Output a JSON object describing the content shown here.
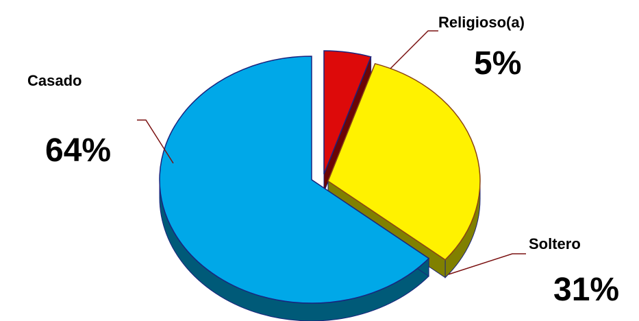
{
  "chart_data": {
    "type": "pie",
    "style": "3d-exploded",
    "title": "",
    "slices": [
      {
        "label": "Religioso(a)",
        "value": 5,
        "display": "5%",
        "color": "#dd0a0a",
        "side_color": "#6b0505"
      },
      {
        "label": "Soltero",
        "value": 31,
        "display": "31%",
        "color": "#fff200",
        "side_color": "#808000"
      },
      {
        "label": "Casado",
        "value": 64,
        "display": "64%",
        "color": "#00a8e8",
        "side_color": "#005a78"
      }
    ],
    "legend": "none"
  }
}
